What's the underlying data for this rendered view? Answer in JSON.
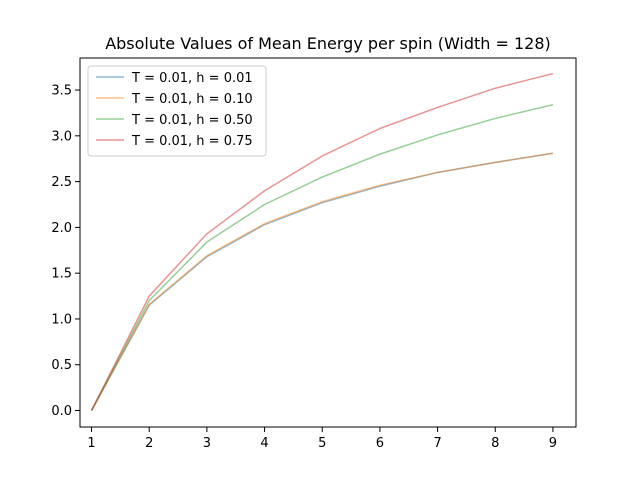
{
  "chart_data": {
    "type": "line",
    "title": "Absolute Values of Mean Energy per spin (Width = 128)",
    "xlabel": "",
    "ylabel": "",
    "x": [
      1,
      2,
      3,
      4,
      5,
      6,
      7,
      8,
      9
    ],
    "xlim": [
      0.8,
      9.4
    ],
    "ylim": [
      -0.18,
      3.85
    ],
    "xticks": [
      1,
      2,
      3,
      4,
      5,
      6,
      7,
      8,
      9
    ],
    "yticks": [
      0.0,
      0.5,
      1.0,
      1.5,
      2.0,
      2.5,
      3.0,
      3.5
    ],
    "ytick_labels": [
      "0.0",
      "0.5",
      "1.0",
      "1.5",
      "2.0",
      "2.5",
      "3.0",
      "3.5"
    ],
    "legend_position": "top-left",
    "grid": false,
    "series": [
      {
        "name": "T = 0.01, h = 0.01",
        "color": "#1f77b4",
        "values": [
          0.0,
          1.15,
          1.68,
          2.03,
          2.27,
          2.45,
          2.6,
          2.71,
          2.81
        ]
      },
      {
        "name": "T = 0.01, h = 0.10",
        "color": "#ff7f0e",
        "values": [
          0.0,
          1.16,
          1.69,
          2.04,
          2.28,
          2.46,
          2.6,
          2.71,
          2.81
        ]
      },
      {
        "name": "T = 0.01, h = 0.50",
        "color": "#2ca02c",
        "values": [
          0.0,
          1.2,
          1.84,
          2.25,
          2.55,
          2.8,
          3.01,
          3.19,
          3.34
        ]
      },
      {
        "name": "T = 0.01, h = 0.75",
        "color": "#d62728",
        "values": [
          0.0,
          1.25,
          1.93,
          2.4,
          2.78,
          3.08,
          3.31,
          3.52,
          3.68
        ]
      }
    ]
  }
}
